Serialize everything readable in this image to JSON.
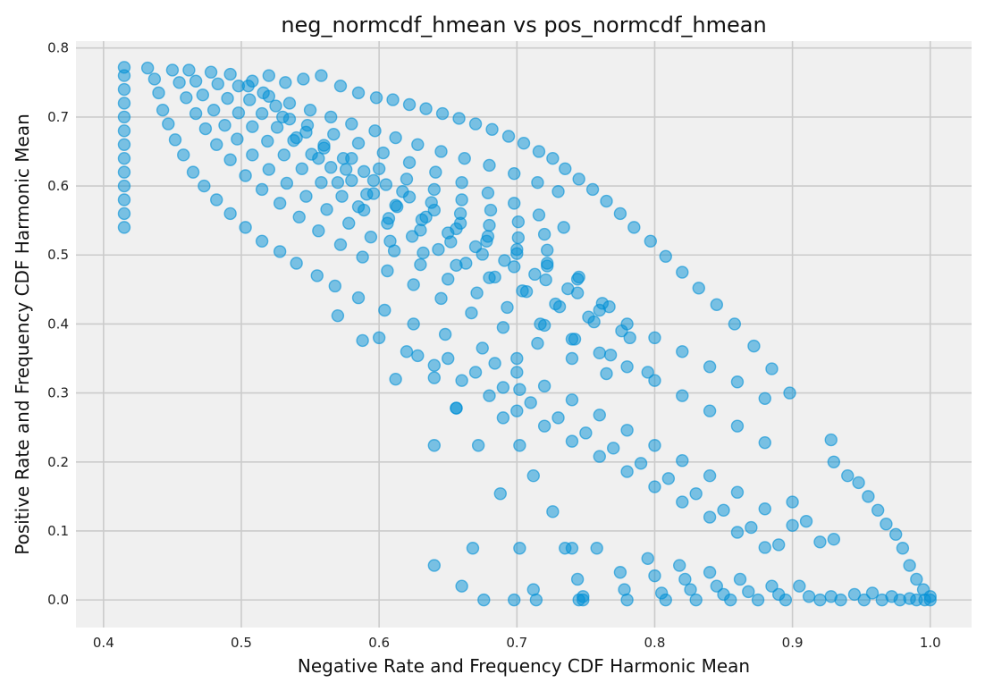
{
  "chart_data": {
    "type": "scatter",
    "title": "neg_normcdf_hmean vs pos_normcdf_hmean",
    "xlabel": "Negative Rate and Frequency CDF Harmonic Mean",
    "ylabel": "Positive Rate and Frequency CDF Harmonic Mean",
    "xlim": [
      0.38,
      1.03
    ],
    "ylim": [
      -0.04,
      0.81
    ],
    "x_ticks": [
      0.4,
      0.5,
      0.6,
      0.7,
      0.8,
      0.9,
      1.0
    ],
    "x_tick_labels": [
      "0.4",
      "0.5",
      "0.6",
      "0.7",
      "0.8",
      "0.9",
      "1.0"
    ],
    "y_ticks": [
      0.0,
      0.1,
      0.2,
      0.3,
      0.4,
      0.5,
      0.6,
      0.7,
      0.8
    ],
    "y_tick_labels": [
      "0.0",
      "0.1",
      "0.2",
      "0.3",
      "0.4",
      "0.5",
      "0.6",
      "0.7",
      "0.8"
    ],
    "grid": true,
    "legend": "none",
    "colors": {
      "point": "#008fd5",
      "background": "#f0f0f0",
      "grid": "#cbcbcb"
    },
    "point_alpha": 0.5,
    "points": [
      [
        0.415,
        0.54
      ],
      [
        0.415,
        0.56
      ],
      [
        0.415,
        0.58
      ],
      [
        0.415,
        0.6
      ],
      [
        0.415,
        0.62
      ],
      [
        0.415,
        0.64
      ],
      [
        0.415,
        0.66
      ],
      [
        0.415,
        0.68
      ],
      [
        0.415,
        0.7
      ],
      [
        0.415,
        0.72
      ],
      [
        0.415,
        0.74
      ],
      [
        0.415,
        0.76
      ],
      [
        0.415,
        0.772
      ],
      [
        0.432,
        0.771
      ],
      [
        0.437,
        0.755
      ],
      [
        0.44,
        0.735
      ],
      [
        0.443,
        0.71
      ],
      [
        0.447,
        0.69
      ],
      [
        0.452,
        0.667
      ],
      [
        0.458,
        0.645
      ],
      [
        0.465,
        0.62
      ],
      [
        0.473,
        0.6
      ],
      [
        0.482,
        0.58
      ],
      [
        0.492,
        0.56
      ],
      [
        0.503,
        0.54
      ],
      [
        0.515,
        0.52
      ],
      [
        0.528,
        0.505
      ],
      [
        0.54,
        0.488
      ],
      [
        0.555,
        0.47
      ],
      [
        0.568,
        0.455
      ],
      [
        0.585,
        0.438
      ],
      [
        0.604,
        0.42
      ],
      [
        0.625,
        0.4
      ],
      [
        0.648,
        0.385
      ],
      [
        0.675,
        0.365
      ],
      [
        0.7,
        0.35
      ],
      [
        0.45,
        0.768
      ],
      [
        0.455,
        0.75
      ],
      [
        0.46,
        0.728
      ],
      [
        0.467,
        0.705
      ],
      [
        0.474,
        0.683
      ],
      [
        0.482,
        0.66
      ],
      [
        0.492,
        0.638
      ],
      [
        0.503,
        0.615
      ],
      [
        0.515,
        0.595
      ],
      [
        0.528,
        0.575
      ],
      [
        0.542,
        0.555
      ],
      [
        0.556,
        0.535
      ],
      [
        0.572,
        0.515
      ],
      [
        0.588,
        0.497
      ],
      [
        0.606,
        0.477
      ],
      [
        0.625,
        0.457
      ],
      [
        0.645,
        0.437
      ],
      [
        0.667,
        0.416
      ],
      [
        0.69,
        0.395
      ],
      [
        0.715,
        0.372
      ],
      [
        0.74,
        0.35
      ],
      [
        0.765,
        0.328
      ],
      [
        0.462,
        0.768
      ],
      [
        0.467,
        0.752
      ],
      [
        0.472,
        0.732
      ],
      [
        0.48,
        0.71
      ],
      [
        0.488,
        0.688
      ],
      [
        0.497,
        0.668
      ],
      [
        0.508,
        0.645
      ],
      [
        0.52,
        0.624
      ],
      [
        0.533,
        0.604
      ],
      [
        0.547,
        0.585
      ],
      [
        0.562,
        0.566
      ],
      [
        0.578,
        0.546
      ],
      [
        0.594,
        0.526
      ],
      [
        0.611,
        0.506
      ],
      [
        0.63,
        0.486
      ],
      [
        0.65,
        0.465
      ],
      [
        0.671,
        0.445
      ],
      [
        0.693,
        0.424
      ],
      [
        0.717,
        0.4
      ],
      [
        0.742,
        0.378
      ],
      [
        0.768,
        0.355
      ],
      [
        0.795,
        0.33
      ],
      [
        0.478,
        0.765
      ],
      [
        0.483,
        0.748
      ],
      [
        0.49,
        0.727
      ],
      [
        0.498,
        0.706
      ],
      [
        0.508,
        0.686
      ],
      [
        0.519,
        0.665
      ],
      [
        0.531,
        0.645
      ],
      [
        0.544,
        0.625
      ],
      [
        0.558,
        0.605
      ],
      [
        0.573,
        0.585
      ],
      [
        0.589,
        0.565
      ],
      [
        0.606,
        0.546
      ],
      [
        0.624,
        0.527
      ],
      [
        0.643,
        0.508
      ],
      [
        0.663,
        0.488
      ],
      [
        0.684,
        0.468
      ],
      [
        0.707,
        0.447
      ],
      [
        0.731,
        0.425
      ],
      [
        0.756,
        0.403
      ],
      [
        0.782,
        0.38
      ],
      [
        0.492,
        0.762
      ],
      [
        0.498,
        0.745
      ],
      [
        0.506,
        0.725
      ],
      [
        0.515,
        0.705
      ],
      [
        0.526,
        0.685
      ],
      [
        0.538,
        0.666
      ],
      [
        0.551,
        0.646
      ],
      [
        0.565,
        0.627
      ],
      [
        0.58,
        0.608
      ],
      [
        0.596,
        0.589
      ],
      [
        0.613,
        0.57
      ],
      [
        0.631,
        0.551
      ],
      [
        0.65,
        0.532
      ],
      [
        0.67,
        0.512
      ],
      [
        0.691,
        0.492
      ],
      [
        0.713,
        0.472
      ],
      [
        0.737,
        0.451
      ],
      [
        0.762,
        0.43
      ],
      [
        0.508,
        0.752
      ],
      [
        0.516,
        0.735
      ],
      [
        0.525,
        0.716
      ],
      [
        0.535,
        0.697
      ],
      [
        0.547,
        0.678
      ],
      [
        0.56,
        0.659
      ],
      [
        0.574,
        0.64
      ],
      [
        0.589,
        0.621
      ],
      [
        0.605,
        0.602
      ],
      [
        0.622,
        0.584
      ],
      [
        0.64,
        0.565
      ],
      [
        0.659,
        0.546
      ],
      [
        0.679,
        0.527
      ],
      [
        0.7,
        0.508
      ],
      [
        0.722,
        0.488
      ],
      [
        0.745,
        0.468
      ],
      [
        0.505,
        0.745
      ],
      [
        0.52,
        0.76
      ],
      [
        0.532,
        0.75
      ],
      [
        0.545,
        0.755
      ],
      [
        0.558,
        0.76
      ],
      [
        0.572,
        0.745
      ],
      [
        0.585,
        0.735
      ],
      [
        0.598,
        0.728
      ],
      [
        0.61,
        0.725
      ],
      [
        0.622,
        0.718
      ],
      [
        0.634,
        0.712
      ],
      [
        0.646,
        0.705
      ],
      [
        0.658,
        0.698
      ],
      [
        0.67,
        0.69
      ],
      [
        0.682,
        0.682
      ],
      [
        0.694,
        0.672
      ],
      [
        0.705,
        0.662
      ],
      [
        0.716,
        0.65
      ],
      [
        0.726,
        0.64
      ],
      [
        0.735,
        0.625
      ],
      [
        0.745,
        0.61
      ],
      [
        0.755,
        0.595
      ],
      [
        0.765,
        0.578
      ],
      [
        0.775,
        0.56
      ],
      [
        0.785,
        0.54
      ],
      [
        0.797,
        0.52
      ],
      [
        0.808,
        0.498
      ],
      [
        0.82,
        0.475
      ],
      [
        0.832,
        0.452
      ],
      [
        0.845,
        0.428
      ],
      [
        0.858,
        0.4
      ],
      [
        0.872,
        0.368
      ],
      [
        0.885,
        0.335
      ],
      [
        0.898,
        0.3
      ],
      [
        0.52,
        0.73
      ],
      [
        0.535,
        0.72
      ],
      [
        0.55,
        0.71
      ],
      [
        0.565,
        0.7
      ],
      [
        0.58,
        0.69
      ],
      [
        0.597,
        0.68
      ],
      [
        0.612,
        0.67
      ],
      [
        0.628,
        0.66
      ],
      [
        0.645,
        0.65
      ],
      [
        0.662,
        0.64
      ],
      [
        0.68,
        0.63
      ],
      [
        0.698,
        0.618
      ],
      [
        0.715,
        0.605
      ],
      [
        0.73,
        0.592
      ],
      [
        0.53,
        0.7
      ],
      [
        0.548,
        0.688
      ],
      [
        0.567,
        0.675
      ],
      [
        0.585,
        0.662
      ],
      [
        0.603,
        0.648
      ],
      [
        0.622,
        0.634
      ],
      [
        0.641,
        0.62
      ],
      [
        0.66,
        0.605
      ],
      [
        0.679,
        0.59
      ],
      [
        0.698,
        0.575
      ],
      [
        0.716,
        0.558
      ],
      [
        0.734,
        0.54
      ],
      [
        0.54,
        0.67
      ],
      [
        0.56,
        0.655
      ],
      [
        0.58,
        0.64
      ],
      [
        0.6,
        0.625
      ],
      [
        0.62,
        0.61
      ],
      [
        0.64,
        0.595
      ],
      [
        0.66,
        0.58
      ],
      [
        0.681,
        0.565
      ],
      [
        0.701,
        0.548
      ],
      [
        0.72,
        0.53
      ],
      [
        0.556,
        0.64
      ],
      [
        0.576,
        0.624
      ],
      [
        0.596,
        0.608
      ],
      [
        0.617,
        0.592
      ],
      [
        0.638,
        0.576
      ],
      [
        0.659,
        0.56
      ],
      [
        0.68,
        0.543
      ],
      [
        0.701,
        0.525
      ],
      [
        0.722,
        0.507
      ],
      [
        0.57,
        0.605
      ],
      [
        0.591,
        0.588
      ],
      [
        0.612,
        0.572
      ],
      [
        0.634,
        0.555
      ],
      [
        0.656,
        0.538
      ],
      [
        0.678,
        0.52
      ],
      [
        0.7,
        0.502
      ],
      [
        0.722,
        0.484
      ],
      [
        0.744,
        0.465
      ],
      [
        0.585,
        0.57
      ],
      [
        0.607,
        0.553
      ],
      [
        0.63,
        0.536
      ],
      [
        0.652,
        0.519
      ],
      [
        0.675,
        0.501
      ],
      [
        0.698,
        0.483
      ],
      [
        0.721,
        0.464
      ],
      [
        0.744,
        0.445
      ],
      [
        0.767,
        0.425
      ],
      [
        0.608,
        0.52
      ],
      [
        0.632,
        0.503
      ],
      [
        0.656,
        0.485
      ],
      [
        0.68,
        0.467
      ],
      [
        0.704,
        0.448
      ],
      [
        0.728,
        0.429
      ],
      [
        0.752,
        0.41
      ],
      [
        0.776,
        0.39
      ],
      [
        0.57,
        0.412
      ],
      [
        0.588,
        0.376
      ],
      [
        0.612,
        0.32
      ],
      [
        0.64,
        0.224
      ],
      [
        0.656,
        0.278
      ],
      [
        0.672,
        0.224
      ],
      [
        0.688,
        0.154
      ],
      [
        0.702,
        0.224
      ],
      [
        0.712,
        0.18
      ],
      [
        0.726,
        0.128
      ],
      [
        0.74,
        0.075
      ],
      [
        0.744,
        0.03
      ],
      [
        0.748,
        0.005
      ],
      [
        0.628,
        0.354
      ],
      [
        0.64,
        0.322
      ],
      [
        0.656,
        0.278
      ],
      [
        0.668,
        0.075
      ],
      [
        0.676,
        0.0
      ],
      [
        0.684,
        0.343
      ],
      [
        0.69,
        0.264
      ],
      [
        0.702,
        0.305
      ],
      [
        0.712,
        0.015
      ],
      [
        0.714,
        0.0
      ],
      [
        0.6,
        0.38
      ],
      [
        0.62,
        0.36
      ],
      [
        0.64,
        0.34
      ],
      [
        0.66,
        0.318
      ],
      [
        0.68,
        0.296
      ],
      [
        0.7,
        0.274
      ],
      [
        0.72,
        0.252
      ],
      [
        0.74,
        0.23
      ],
      [
        0.76,
        0.208
      ],
      [
        0.78,
        0.186
      ],
      [
        0.8,
        0.164
      ],
      [
        0.82,
        0.142
      ],
      [
        0.84,
        0.12
      ],
      [
        0.86,
        0.098
      ],
      [
        0.88,
        0.076
      ],
      [
        0.65,
        0.35
      ],
      [
        0.67,
        0.33
      ],
      [
        0.69,
        0.308
      ],
      [
        0.71,
        0.286
      ],
      [
        0.73,
        0.264
      ],
      [
        0.75,
        0.242
      ],
      [
        0.77,
        0.22
      ],
      [
        0.79,
        0.198
      ],
      [
        0.81,
        0.176
      ],
      [
        0.83,
        0.154
      ],
      [
        0.85,
        0.13
      ],
      [
        0.87,
        0.105
      ],
      [
        0.89,
        0.08
      ],
      [
        0.7,
        0.33
      ],
      [
        0.72,
        0.31
      ],
      [
        0.74,
        0.29
      ],
      [
        0.76,
        0.268
      ],
      [
        0.78,
        0.246
      ],
      [
        0.8,
        0.224
      ],
      [
        0.82,
        0.202
      ],
      [
        0.84,
        0.18
      ],
      [
        0.86,
        0.156
      ],
      [
        0.88,
        0.132
      ],
      [
        0.9,
        0.108
      ],
      [
        0.92,
        0.084
      ],
      [
        0.72,
        0.398
      ],
      [
        0.74,
        0.378
      ],
      [
        0.76,
        0.358
      ],
      [
        0.78,
        0.338
      ],
      [
        0.8,
        0.318
      ],
      [
        0.82,
        0.296
      ],
      [
        0.84,
        0.274
      ],
      [
        0.86,
        0.252
      ],
      [
        0.88,
        0.228
      ],
      [
        0.9,
        0.142
      ],
      [
        0.91,
        0.114
      ],
      [
        0.93,
        0.088
      ],
      [
        0.76,
        0.42
      ],
      [
        0.78,
        0.4
      ],
      [
        0.8,
        0.38
      ],
      [
        0.82,
        0.36
      ],
      [
        0.84,
        0.338
      ],
      [
        0.86,
        0.316
      ],
      [
        0.88,
        0.292
      ],
      [
        0.928,
        0.232
      ],
      [
        0.93,
        0.2
      ],
      [
        0.94,
        0.18
      ],
      [
        0.948,
        0.17
      ],
      [
        0.955,
        0.15
      ],
      [
        0.962,
        0.13
      ],
      [
        0.968,
        0.11
      ],
      [
        0.975,
        0.095
      ],
      [
        0.98,
        0.075
      ],
      [
        0.985,
        0.05
      ],
      [
        0.99,
        0.03
      ],
      [
        0.995,
        0.015
      ],
      [
        1.0,
        0.005
      ],
      [
        0.702,
        0.075
      ],
      [
        0.735,
        0.075
      ],
      [
        0.758,
        0.075
      ],
      [
        0.775,
        0.04
      ],
      [
        0.778,
        0.015
      ],
      [
        0.78,
        0.0
      ],
      [
        0.795,
        0.06
      ],
      [
        0.8,
        0.035
      ],
      [
        0.805,
        0.01
      ],
      [
        0.808,
        0.0
      ],
      [
        0.818,
        0.05
      ],
      [
        0.822,
        0.03
      ],
      [
        0.826,
        0.015
      ],
      [
        0.83,
        0.0
      ],
      [
        0.84,
        0.04
      ],
      [
        0.845,
        0.02
      ],
      [
        0.85,
        0.008
      ],
      [
        0.855,
        0.0
      ],
      [
        0.862,
        0.03
      ],
      [
        0.868,
        0.012
      ],
      [
        0.875,
        0.0
      ],
      [
        0.885,
        0.02
      ],
      [
        0.89,
        0.008
      ],
      [
        0.895,
        0.0
      ],
      [
        0.905,
        0.02
      ],
      [
        0.912,
        0.005
      ],
      [
        0.92,
        0.0
      ],
      [
        0.928,
        0.005
      ],
      [
        0.935,
        0.0
      ],
      [
        0.945,
        0.008
      ],
      [
        0.952,
        0.0
      ],
      [
        0.958,
        0.01
      ],
      [
        0.965,
        0.0
      ],
      [
        0.972,
        0.005
      ],
      [
        0.978,
        0.0
      ],
      [
        0.985,
        0.002
      ],
      [
        0.99,
        0.0
      ],
      [
        0.996,
        0.0
      ],
      [
        1.0,
        0.0
      ],
      [
        0.745,
        0.0
      ],
      [
        0.748,
        0.0
      ],
      [
        0.698,
        0.0
      ],
      [
        0.64,
        0.05
      ],
      [
        0.66,
        0.02
      ]
    ]
  }
}
